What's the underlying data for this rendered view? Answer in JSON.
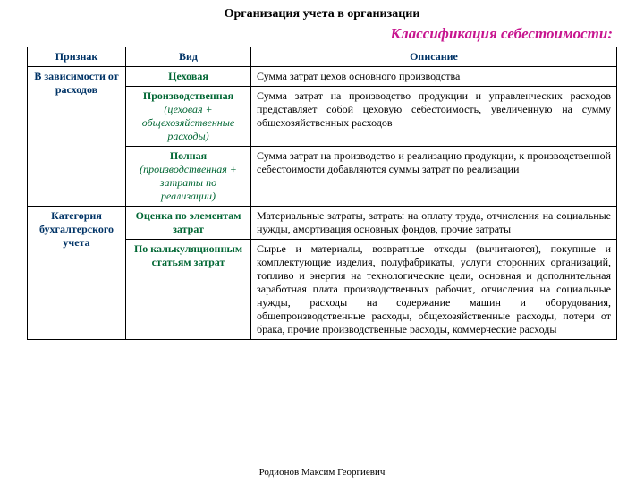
{
  "header": {
    "title": "Организация учета в организации",
    "subtitle": "Классификация себестоимости:"
  },
  "table": {
    "columns": [
      "Признак",
      "Вид",
      "Описание"
    ],
    "groups": [
      {
        "label": "В зависимости от расходов",
        "rows": [
          {
            "type_main": "Цеховая",
            "type_sub": "",
            "desc": "Сумма затрат цехов основного производства"
          },
          {
            "type_main": "Производственная",
            "type_sub": "(цеховая + общехозяйственные расходы)",
            "desc": "Сумма затрат на производство продукции и управленческих расходов представляет собой цеховую себестоимость, увеличенную на сумму общехозяйственных расходов"
          },
          {
            "type_main": "Полная",
            "type_sub": "(производственная + затраты по реализации)",
            "desc": "Сумма затрат на производство и реализацию продукции, к производственной себестоимости добавляются суммы затрат по реализации"
          }
        ]
      },
      {
        "label": "Категория бухгалтерского учета",
        "rows": [
          {
            "type_main": "Оценка по элементам затрат",
            "type_sub": "",
            "desc": "Материальные затраты, затраты на оплату труда, отчисления на социальные нужды, амортизация основных фондов, прочие затраты"
          },
          {
            "type_main": "По калькуляционным статьям затрат",
            "type_sub": "",
            "desc": "Сырье и материалы, возвратные отходы (вычитаются), покупные и комплектующие изделия, полуфабрикаты, услуги сторонних организаций, топливо и энергия на технологические цели, основная и дополнительная заработная плата производственных рабочих, отчисления на социальные нужды, расходы на содержание машин и оборудования, общепроизводственные расходы, общехозяйственные расходы, потери от брака, прочие производственные расходы, коммерческие расходы"
          }
        ]
      }
    ]
  },
  "footer": "Родионов Максим Георгиевич"
}
